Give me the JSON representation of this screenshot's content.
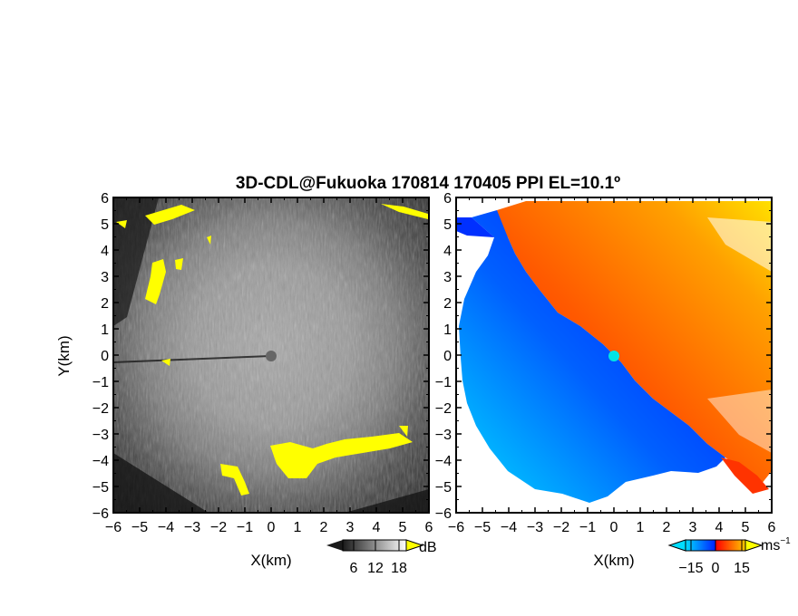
{
  "figure": {
    "title": "3D-CDL@Fukuoka 170814 170405 PPI EL=10.1º"
  },
  "chart_data": [
    {
      "type": "heatmap",
      "panel": "left",
      "quantity": "reflectivity",
      "xlabel": "X(km)",
      "ylabel": "Y(km)",
      "xlim": [
        -6,
        6
      ],
      "ylim": [
        -6,
        6
      ],
      "x_ticks": [
        "−6",
        "−5",
        "−4",
        "−3",
        "−2",
        "−1",
        "0",
        "1",
        "2",
        "3",
        "4",
        "5",
        "6"
      ],
      "y_ticks": [
        "6",
        "5",
        "4",
        "3",
        "2",
        "1",
        "0",
        "−1",
        "−2",
        "−3",
        "−4",
        "−5",
        "−6"
      ],
      "colorbar": {
        "unit": "dB",
        "ticks": [
          "6",
          "12",
          "18"
        ],
        "colors": [
          "#1a1a1a",
          "#ffffff"
        ],
        "palette": "grayscale"
      },
      "center_marker": {
        "x": 0,
        "y": 0,
        "color": "#666666"
      },
      "highlight_color": "#ffff00"
    },
    {
      "type": "heatmap",
      "panel": "right",
      "quantity": "doppler_velocity",
      "xlabel": "X(km)",
      "ylabel": "",
      "xlim": [
        -6,
        6
      ],
      "ylim": [
        -6,
        6
      ],
      "x_ticks": [
        "−6",
        "−5",
        "−4",
        "−3",
        "−2",
        "−1",
        "0",
        "1",
        "2",
        "3",
        "4",
        "5",
        "6"
      ],
      "y_ticks": [
        "6",
        "5",
        "4",
        "3",
        "2",
        "1",
        "0",
        "−1",
        "−2",
        "−3",
        "−4",
        "−5",
        "−6"
      ],
      "colorbar": {
        "unit": "ms",
        "unit_exponent": "−1",
        "ticks": [
          "−15",
          "0",
          "15"
        ],
        "colors": [
          "#00ddff",
          "#0022ff",
          "#ff0000",
          "#ffcc00"
        ]
      },
      "center_marker": {
        "x": 0,
        "y": 0,
        "color": "#00e5e5"
      }
    }
  ]
}
